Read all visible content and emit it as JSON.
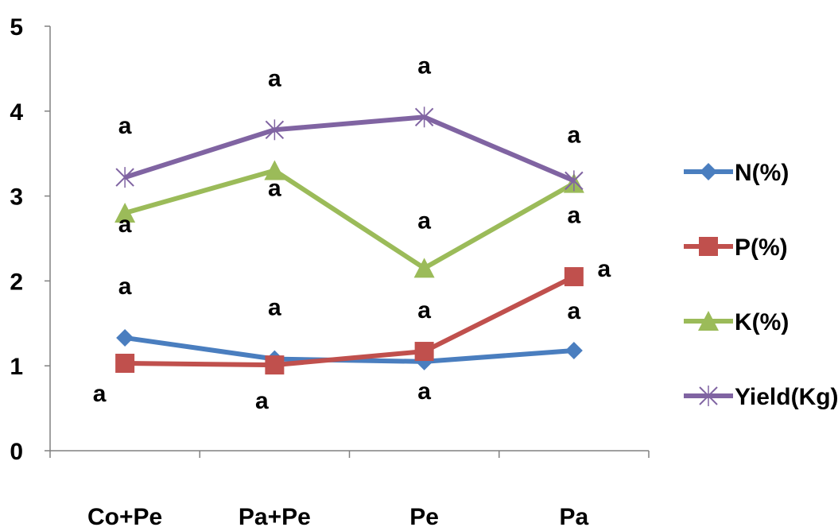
{
  "chart_data": {
    "type": "line",
    "categories": [
      "Co+Pe",
      "Pa+Pe",
      "Pe",
      "Pa"
    ],
    "ylim": [
      0,
      5
    ],
    "yticks": [
      "0",
      "1",
      "2",
      "3",
      "4",
      "5"
    ],
    "grid": false,
    "legend_position": "right",
    "series": [
      {
        "name": "N(%)",
        "color": "#4a7ebf",
        "marker": "diamond",
        "values": [
          1.33,
          1.08,
          1.05,
          1.18
        ],
        "sig": [
          "a",
          "a",
          "a",
          "a"
        ]
      },
      {
        "name": "P(%)",
        "color": "#c0504d",
        "marker": "square",
        "values": [
          1.03,
          1.01,
          1.17,
          2.05
        ],
        "sig": [
          "a",
          "a",
          "a",
          "a"
        ]
      },
      {
        "name": "K(%)",
        "color": "#9bbb59",
        "marker": "triangle",
        "values": [
          2.8,
          3.3,
          2.15,
          3.15
        ],
        "sig": [
          "a",
          "a",
          "a",
          "a"
        ]
      },
      {
        "name": "Yield(Kg)",
        "color": "#8064a2",
        "marker": "x",
        "values": [
          3.22,
          3.78,
          3.93,
          3.18
        ],
        "sig": [
          "a",
          "a",
          "a",
          "a"
        ]
      }
    ]
  }
}
